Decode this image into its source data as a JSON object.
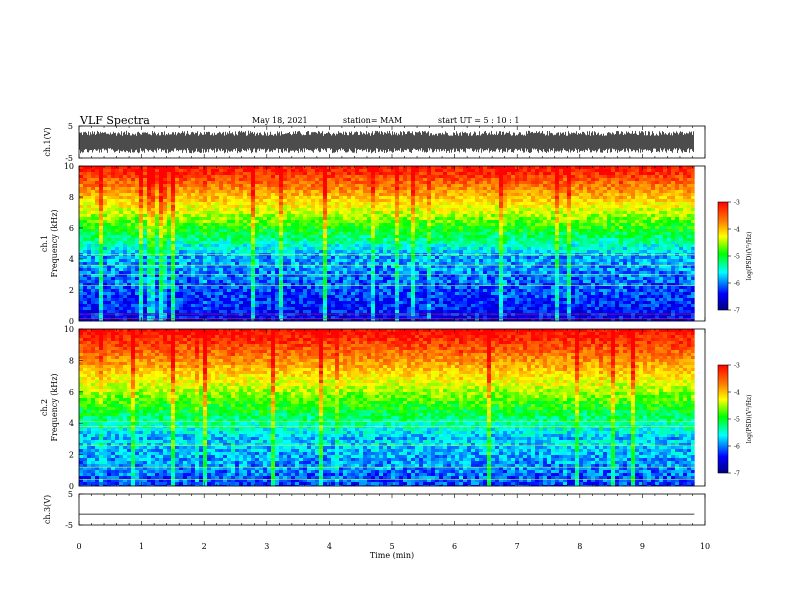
{
  "header": {
    "title": "VLF Spectra",
    "date": "May 18, 2021",
    "station": "station= MAM",
    "start": "start  UT =  5 : 10 : 1"
  },
  "colors": {
    "background": "#ffffff",
    "ink": "#000000",
    "colormap": [
      "#000080",
      "#0000ff",
      "#00ffff",
      "#00ff00",
      "#ffff00",
      "#ff8000",
      "#ff0000"
    ]
  },
  "chart_data": [
    {
      "type": "line",
      "name": "ch1-waveform",
      "ylabel": "ch.1(V)",
      "ylim": [
        -5,
        5
      ],
      "yticks": [
        5,
        -5
      ],
      "xlim": [
        0,
        10
      ],
      "series": [
        {
          "x_range": [
            0,
            9.83
          ],
          "amplitude_range": [
            -3.5,
            3.5
          ]
        }
      ]
    },
    {
      "type": "heatmap",
      "name": "ch1-spectrogram",
      "ylabel": "ch.1",
      "ylabel2": "Frequency  (kHz)",
      "ylim": [
        0,
        10
      ],
      "yticks": [
        "0",
        "2",
        "4",
        "6",
        "8",
        "10"
      ],
      "xlim": [
        0,
        10
      ],
      "data_xrange": [
        0,
        9.83
      ],
      "colorbar": {
        "label": "log(PSD)(V²/Hz)",
        "range": [
          -7,
          -3
        ],
        "ticks": [
          "-3",
          "-4",
          "-5",
          "-6",
          "-7"
        ]
      }
    },
    {
      "type": "heatmap",
      "name": "ch2-spectrogram",
      "ylabel": "ch.2",
      "ylabel2": "Frequency  (kHz)",
      "ylim": [
        0,
        10
      ],
      "yticks": [
        "0",
        "2",
        "4",
        "6",
        "8",
        "10"
      ],
      "xlim": [
        0,
        10
      ],
      "data_xrange": [
        0,
        9.83
      ],
      "colorbar": {
        "label": "log(PSD)(V²/Hz)",
        "range": [
          -7,
          -3
        ],
        "ticks": [
          "-3",
          "-4",
          "-5",
          "-6",
          "-7"
        ]
      }
    },
    {
      "type": "line",
      "name": "ch3-waveform",
      "ylabel": "ch.3(V)",
      "ylim": [
        -5,
        5
      ],
      "yticks": [
        5,
        -5
      ],
      "xlim": [
        0,
        10
      ],
      "series": [
        {
          "x": [
            0,
            9.83
          ],
          "y": [
            -1.5,
            -1.5
          ]
        }
      ]
    }
  ],
  "xaxis": {
    "label": "Time  (min)",
    "ticks": [
      "0",
      "1",
      "2",
      "3",
      "4",
      "5",
      "6",
      "7",
      "8",
      "9",
      "10"
    ]
  }
}
